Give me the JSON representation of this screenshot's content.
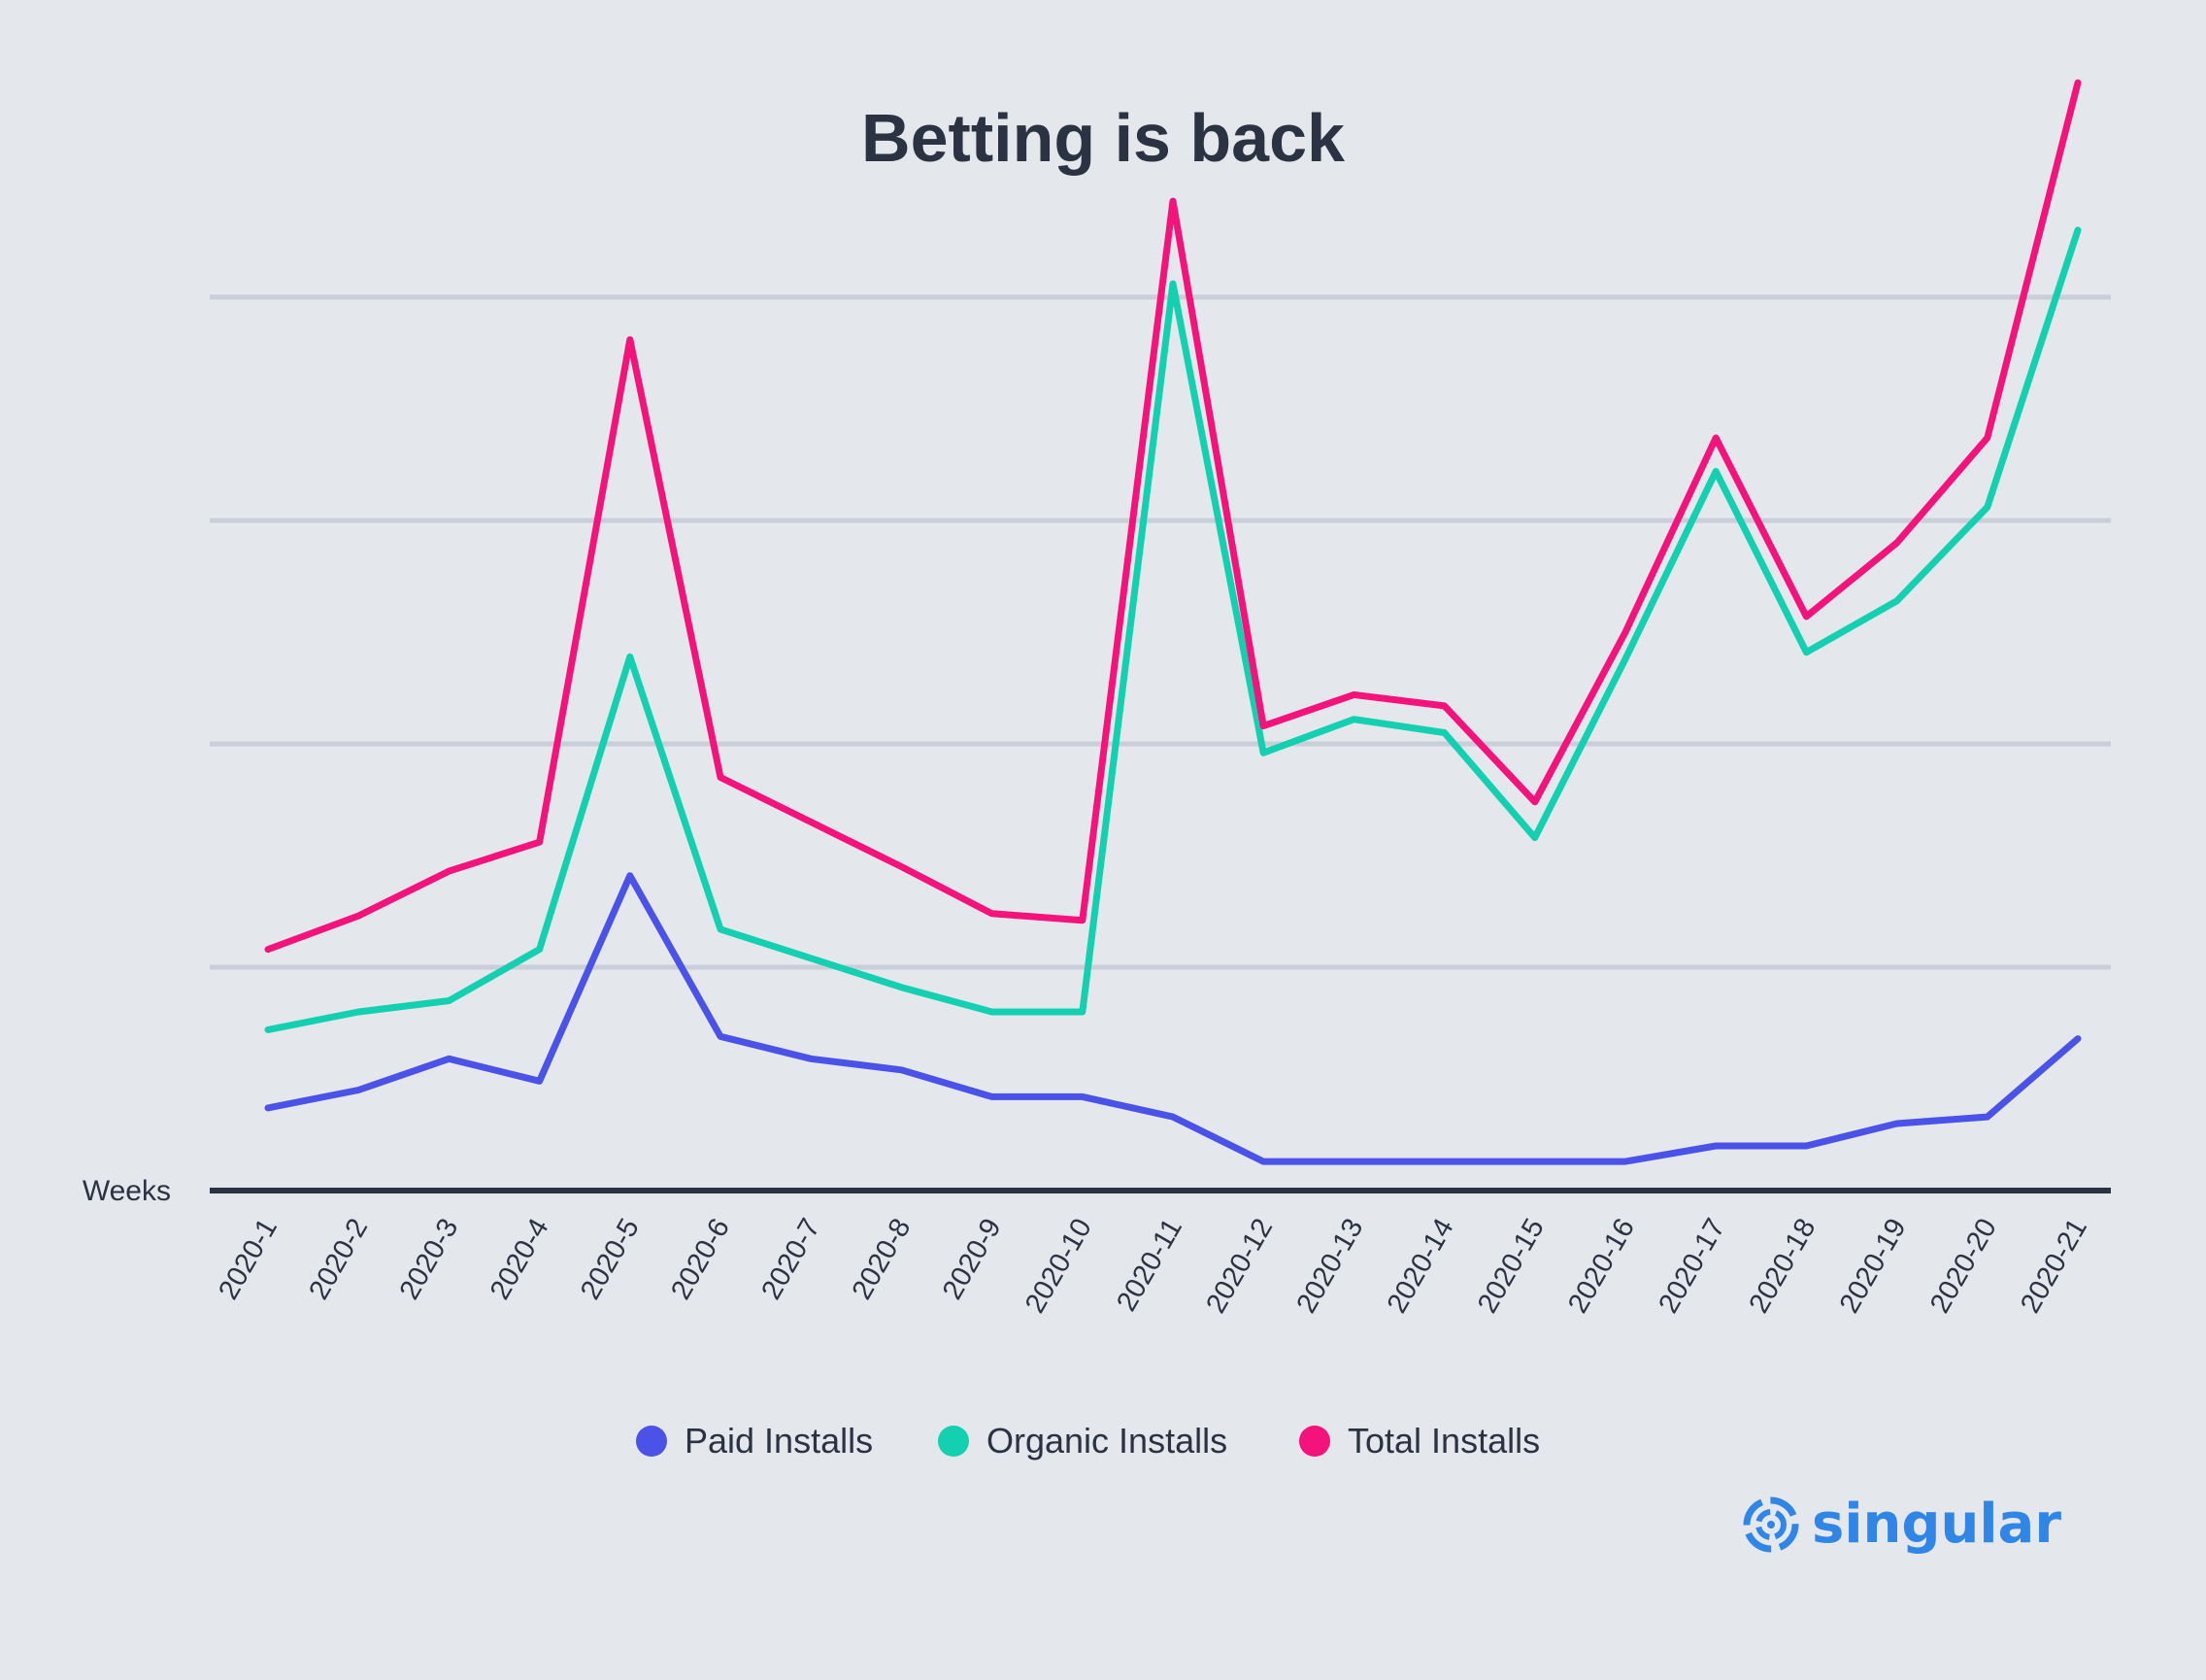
{
  "chart_data": {
    "type": "line",
    "title": "Betting is back",
    "xlabel": "Weeks",
    "ylabel": "",
    "ylim": [
      0,
      5
    ],
    "grid": true,
    "legend_position": "bottom-center",
    "categories": [
      "2020-1",
      "2020-2",
      "2020-3",
      "2020-4",
      "2020-5",
      "2020-6",
      "2020-7",
      "2020-8",
      "2020-9",
      "2020-10",
      "2020-11",
      "2020-12",
      "2020-13",
      "2020-14",
      "2020-15",
      "2020-16",
      "2020-17",
      "2020-18",
      "2020-19",
      "2020-20",
      "2020-21"
    ],
    "series": [
      {
        "name": "Paid Installs",
        "color": "#4a52e8",
        "values": [
          0.37,
          0.45,
          0.59,
          0.49,
          1.41,
          0.69,
          0.59,
          0.54,
          0.42,
          0.42,
          0.33,
          0.13,
          0.13,
          0.13,
          0.13,
          0.13,
          0.2,
          0.2,
          0.3,
          0.33,
          0.68
        ]
      },
      {
        "name": "Organic Installs",
        "color": "#12d0b0",
        "values": [
          0.72,
          0.8,
          0.85,
          1.08,
          2.39,
          1.17,
          1.04,
          0.91,
          0.8,
          0.8,
          4.06,
          1.96,
          2.11,
          2.05,
          1.58,
          2.38,
          3.22,
          2.41,
          2.64,
          3.06,
          4.3
        ]
      },
      {
        "name": "Total Installs",
        "color": "#f4137a",
        "values": [
          1.08,
          1.23,
          1.43,
          1.56,
          3.81,
          1.85,
          1.65,
          1.45,
          1.24,
          1.21,
          4.43,
          2.08,
          2.22,
          2.17,
          1.74,
          2.5,
          3.37,
          2.57,
          2.9,
          3.37,
          4.96
        ]
      }
    ]
  },
  "logo": {
    "text": "singular",
    "color": "#2f86e6",
    "icon": "singular-swirl-icon"
  },
  "colors": {
    "background": "#e4e7ec",
    "grid": "#c9ced9",
    "axis": "#2b3242",
    "text": "#2b3242"
  }
}
